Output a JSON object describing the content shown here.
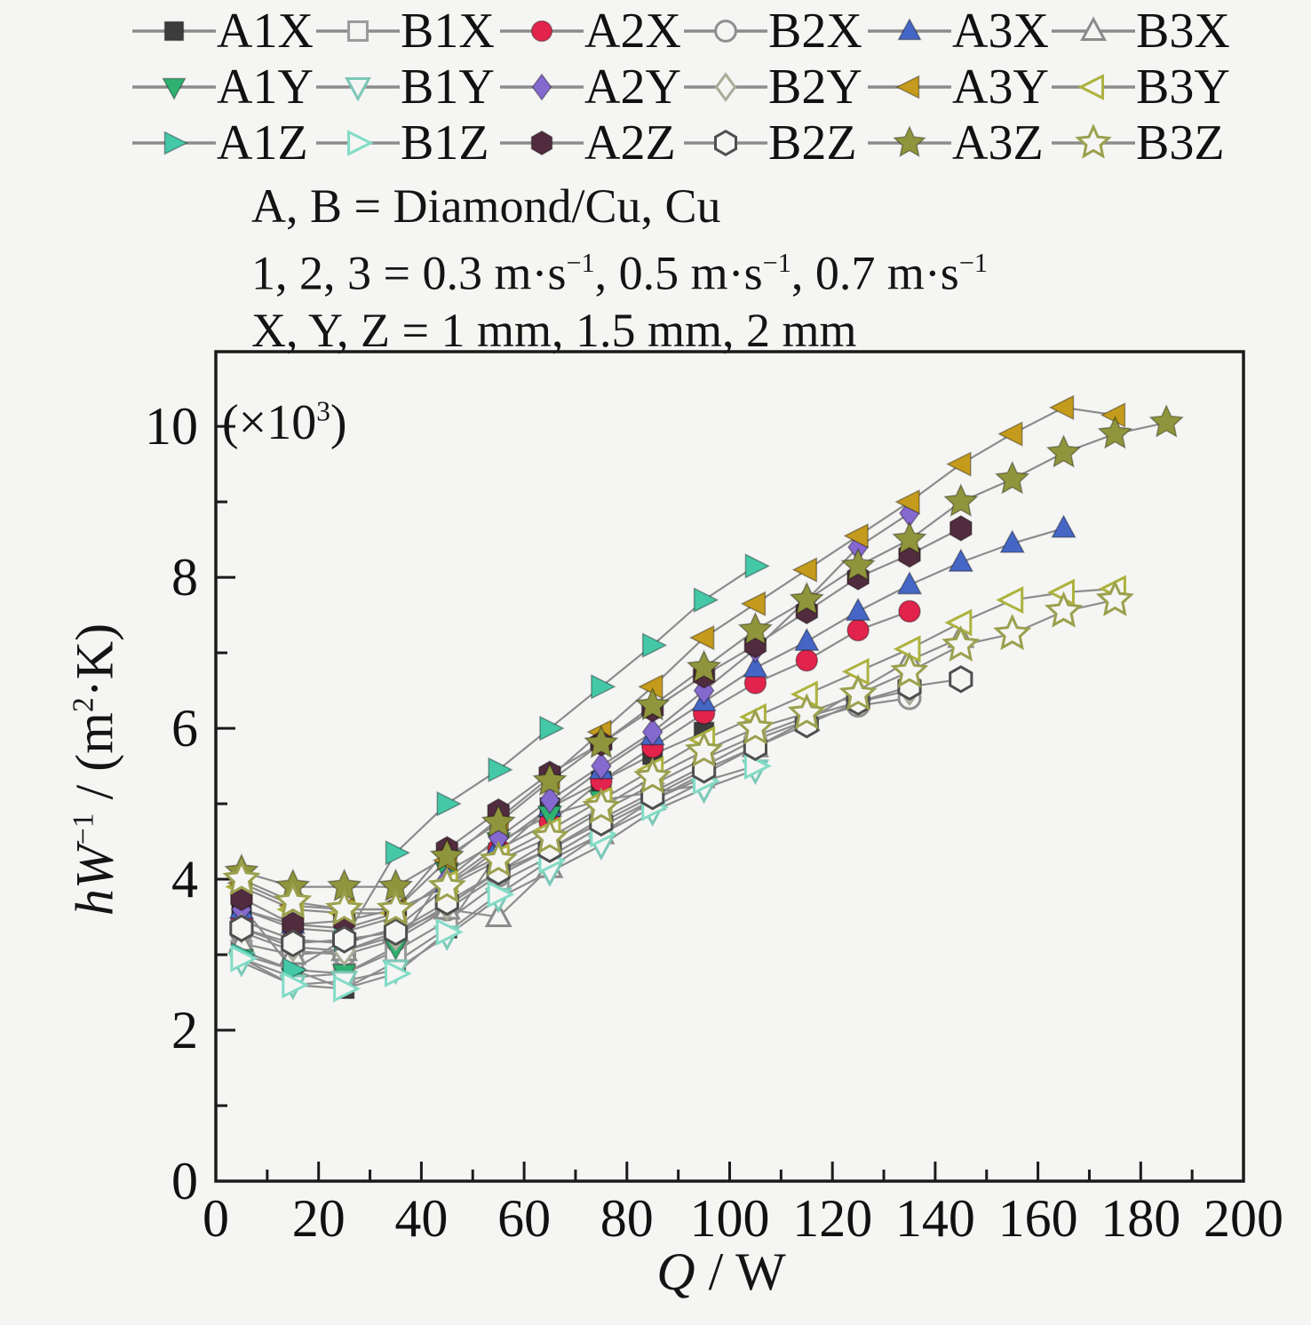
{
  "figure": {
    "notes": {
      "line1": "A, B = Diamond/Cu, Cu",
      "line2_p1": "1, 2, 3 = 0.3 m·s",
      "line2_sup": "−1",
      "line2_p2": ", 0.5 m·s",
      "line2_p3": ", 0.7 m·s",
      "line3": "X, Y, Z = 1 mm, 1.5 mm, 2 mm"
    },
    "axis": {
      "x_label_italic": "Q",
      "x_label_rest": " / W",
      "y_label_italic": "hW",
      "y_label_sup": "−1",
      "y_label_mid": " / (m",
      "y_label_sup2": "2",
      "y_label_end": "·K)",
      "scale_p1": "(×10",
      "scale_sup": "3",
      "scale_p2": ")"
    }
  },
  "chart_data": {
    "type": "line",
    "title": "",
    "xlabel": "Q / W",
    "ylabel": "hW−1 / (m2·K)",
    "y_scale_note": "(×103)",
    "xlim": [
      0,
      200
    ],
    "ylim": [
      0,
      10.99
    ],
    "grid": false,
    "legend_position": "top",
    "x_major_ticks": [
      0,
      20,
      40,
      60,
      80,
      100,
      120,
      140,
      160,
      180,
      200
    ],
    "x_minor_ticks": [
      10,
      30,
      50,
      70,
      90,
      110,
      130,
      150,
      170,
      190
    ],
    "y_major_ticks": [
      0,
      2,
      4,
      6,
      8,
      10
    ],
    "y_minor_ticks": [
      1,
      3,
      5,
      7,
      9
    ],
    "line_color": "#8c8c8c",
    "open_fill": "#f5f5f3",
    "axis_color": "#1b1b1b",
    "series": [
      {
        "name": "A1X",
        "marker": "square",
        "filled": true,
        "color": "#3c3c3c",
        "x": [
          5,
          15,
          25,
          35,
          45,
          55,
          65,
          75,
          85,
          95
        ],
        "y": [
          3.65,
          2.8,
          2.55,
          2.9,
          3.35,
          4.35,
          4.95,
          5.3,
          5.65,
          5.95
        ]
      },
      {
        "name": "B1X",
        "marker": "square",
        "filled": false,
        "color": "#9a9a9a",
        "x": [
          5,
          15,
          25,
          35,
          45,
          55,
          65,
          75,
          85,
          95
        ],
        "y": [
          3.05,
          2.8,
          2.75,
          3.05,
          3.45,
          3.95,
          4.3,
          4.7,
          5.05,
          5.35
        ]
      },
      {
        "name": "A2X",
        "marker": "circle",
        "filled": true,
        "color": "#e2244d",
        "x": [
          5,
          15,
          25,
          35,
          45,
          55,
          65,
          75,
          85,
          95,
          105,
          115,
          125,
          135
        ],
        "y": [
          3.45,
          3.2,
          3.15,
          3.35,
          3.9,
          4.4,
          4.75,
          5.3,
          5.75,
          6.2,
          6.6,
          6.9,
          7.3,
          7.55
        ]
      },
      {
        "name": "B2X",
        "marker": "circle",
        "filled": false,
        "color": "#8f8f8f",
        "x": [
          5,
          15,
          25,
          35,
          45,
          55,
          65,
          75,
          85,
          95,
          105,
          115,
          125,
          135
        ],
        "y": [
          3.3,
          3.05,
          3.0,
          3.2,
          3.6,
          4.05,
          4.4,
          4.8,
          5.15,
          5.5,
          5.85,
          6.1,
          6.3,
          6.4
        ]
      },
      {
        "name": "A3X",
        "marker": "triangle-up",
        "filled": true,
        "color": "#4566c4",
        "x": [
          5,
          15,
          25,
          35,
          45,
          55,
          65,
          75,
          85,
          95,
          105,
          115,
          125,
          135,
          145,
          155,
          165
        ],
        "y": [
          3.6,
          3.4,
          3.35,
          3.55,
          3.95,
          4.45,
          4.95,
          5.45,
          5.9,
          6.35,
          6.8,
          7.15,
          7.55,
          7.9,
          8.2,
          8.45,
          8.65
        ]
      },
      {
        "name": "B3X",
        "marker": "triangle-up",
        "filled": false,
        "color": "#8b8b8b",
        "x": [
          5,
          15,
          25,
          35,
          45,
          55,
          65,
          75,
          85,
          95,
          105,
          115,
          125,
          135,
          145
        ],
        "y": [
          3.15,
          3.0,
          3.05,
          3.3,
          3.6,
          3.5,
          4.15,
          4.6,
          5.05,
          5.4,
          5.75,
          6.1,
          6.5,
          6.9,
          7.2
        ]
      },
      {
        "name": "A1Y",
        "marker": "triangle-down",
        "filled": true,
        "color": "#2fb271",
        "x": [
          5,
          15,
          25,
          35,
          45,
          55,
          65,
          75,
          85,
          95
        ],
        "y": [
          2.95,
          2.7,
          2.75,
          3.1,
          4.1,
          4.5,
          4.85,
          5.05,
          5.15,
          5.25
        ]
      },
      {
        "name": "B1Y",
        "marker": "triangle-down",
        "filled": false,
        "color": "#7cc8b8",
        "x": [
          5,
          15,
          25,
          35,
          45,
          55,
          65,
          75,
          85,
          95,
          105
        ],
        "y": [
          2.9,
          2.6,
          2.65,
          2.8,
          3.25,
          3.75,
          4.1,
          4.45,
          4.9,
          5.2,
          5.45
        ]
      },
      {
        "name": "A2Y",
        "marker": "diamond",
        "filled": true,
        "color": "#8669ce",
        "x": [
          5,
          15,
          25,
          35,
          45,
          55,
          65,
          75,
          85,
          95,
          105,
          115,
          125,
          135
        ],
        "y": [
          3.6,
          3.35,
          3.3,
          3.5,
          4.0,
          4.55,
          5.05,
          5.5,
          5.95,
          6.5,
          7.05,
          7.7,
          8.4,
          8.85
        ]
      },
      {
        "name": "B2Y",
        "marker": "diamond",
        "filled": false,
        "color": "#aaab98",
        "x": [
          5,
          15,
          25,
          35,
          45,
          55,
          65,
          75,
          85,
          95,
          105,
          115,
          125,
          135
        ],
        "y": [
          3.35,
          3.1,
          3.05,
          3.25,
          3.65,
          4.1,
          4.5,
          4.9,
          5.25,
          5.6,
          5.9,
          6.15,
          6.35,
          6.5
        ]
      },
      {
        "name": "A3Y",
        "marker": "triangle-left",
        "filled": true,
        "color": "#c49b1c",
        "x": [
          5,
          15,
          25,
          35,
          45,
          55,
          65,
          75,
          85,
          95,
          105,
          115,
          125,
          135,
          145,
          155,
          165,
          175
        ],
        "y": [
          3.95,
          3.65,
          3.6,
          3.6,
          4.25,
          4.8,
          5.35,
          5.95,
          6.55,
          7.2,
          7.65,
          8.1,
          8.55,
          9.0,
          9.5,
          9.9,
          10.25,
          10.15
        ]
      },
      {
        "name": "B3Y",
        "marker": "triangle-left",
        "filled": false,
        "color": "#adb23e",
        "x": [
          5,
          15,
          25,
          35,
          45,
          55,
          65,
          75,
          85,
          95,
          105,
          115,
          125,
          135,
          145,
          155,
          165,
          175
        ],
        "y": [
          3.9,
          3.6,
          3.55,
          3.55,
          3.95,
          4.3,
          4.65,
          5.05,
          5.45,
          5.85,
          6.15,
          6.45,
          6.75,
          7.05,
          7.4,
          7.7,
          7.8,
          7.85
        ]
      },
      {
        "name": "A1Z",
        "marker": "triangle-right",
        "filled": true,
        "color": "#45c8a8",
        "x": [
          5,
          15,
          25,
          35,
          45,
          55,
          65,
          75,
          85,
          95,
          105
        ],
        "y": [
          3.0,
          2.8,
          3.2,
          4.35,
          5.0,
          5.45,
          6.0,
          6.55,
          7.1,
          7.7,
          8.15
        ]
      },
      {
        "name": "B1Z",
        "marker": "triangle-right",
        "filled": false,
        "color": "#82dcc6",
        "x": [
          5,
          15,
          25,
          35,
          45,
          55,
          65,
          75,
          85,
          95,
          105
        ],
        "y": [
          2.95,
          2.6,
          2.55,
          2.75,
          3.3,
          3.8,
          4.25,
          4.6,
          4.95,
          5.3,
          5.5
        ]
      },
      {
        "name": "A2Z",
        "marker": "hexagon",
        "filled": true,
        "color": "#502c3e",
        "x": [
          5,
          15,
          25,
          35,
          45,
          55,
          65,
          75,
          85,
          95,
          105,
          115,
          125,
          135,
          145
        ],
        "y": [
          3.75,
          3.4,
          3.45,
          3.6,
          4.4,
          4.9,
          5.4,
          5.8,
          6.25,
          6.7,
          7.1,
          7.55,
          8.0,
          8.3,
          8.65
        ]
      },
      {
        "name": "B2Z",
        "marker": "hexagon",
        "filled": false,
        "color": "#4f4f4f",
        "x": [
          5,
          15,
          25,
          35,
          45,
          55,
          65,
          75,
          85,
          95,
          105,
          115,
          125,
          135,
          145
        ],
        "y": [
          3.35,
          3.15,
          3.2,
          3.3,
          3.7,
          4.1,
          4.4,
          4.75,
          5.1,
          5.45,
          5.75,
          6.05,
          6.35,
          6.55,
          6.65
        ]
      },
      {
        "name": "A3Z",
        "marker": "star",
        "filled": true,
        "color": "#8f953c",
        "x": [
          5,
          15,
          25,
          35,
          45,
          55,
          65,
          75,
          85,
          95,
          105,
          115,
          125,
          135,
          145,
          155,
          165,
          175,
          185
        ],
        "y": [
          4.1,
          3.9,
          3.9,
          3.9,
          4.3,
          4.75,
          5.3,
          5.8,
          6.3,
          6.8,
          7.3,
          7.7,
          8.15,
          8.5,
          9.0,
          9.3,
          9.65,
          9.9,
          10.05
        ]
      },
      {
        "name": "B3Z",
        "marker": "star",
        "filled": false,
        "color": "#9ba04e",
        "x": [
          5,
          15,
          25,
          35,
          45,
          55,
          65,
          75,
          85,
          95,
          105,
          115,
          125,
          135,
          145,
          155,
          165,
          175
        ],
        "y": [
          4.0,
          3.7,
          3.6,
          3.6,
          3.9,
          4.25,
          4.55,
          4.95,
          5.35,
          5.7,
          6.0,
          6.2,
          6.45,
          6.75,
          7.1,
          7.25,
          7.55,
          7.7
        ]
      }
    ]
  }
}
